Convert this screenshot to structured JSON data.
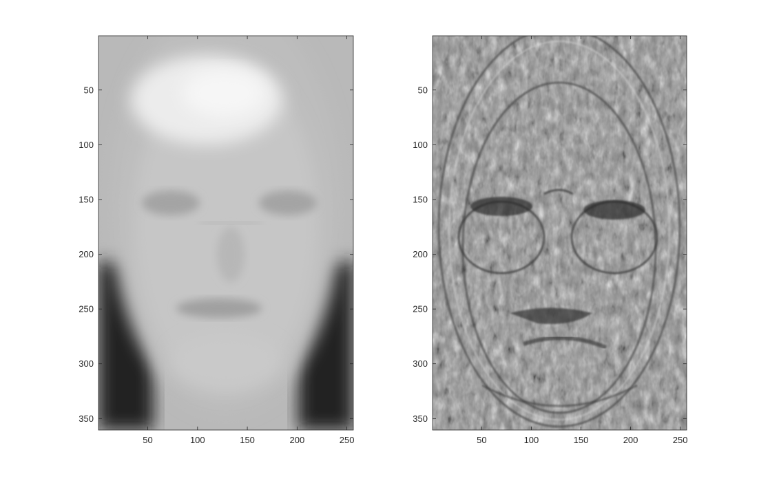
{
  "chart_data": [
    {
      "type": "heatmap",
      "colormap": "gray",
      "image_size": [
        256,
        360
      ],
      "xlim": [
        0.5,
        256.5
      ],
      "ylim": [
        0.5,
        360.5
      ],
      "y_direction": "reversed",
      "xticks": [
        50,
        100,
        150,
        200,
        250
      ],
      "yticks": [
        50,
        100,
        150,
        200,
        250,
        300,
        350
      ],
      "xtick_labels": [
        "50",
        "100",
        "150",
        "200",
        "250"
      ],
      "ytick_labels": [
        "50",
        "100",
        "150",
        "200",
        "250",
        "300",
        "350"
      ],
      "grid": false
    },
    {
      "type": "heatmap",
      "colormap": "gray",
      "image_size": [
        256,
        360
      ],
      "xlim": [
        0.5,
        256.5
      ],
      "ylim": [
        0.5,
        360.5
      ],
      "y_direction": "reversed",
      "xticks": [
        50,
        100,
        150,
        200,
        250
      ],
      "yticks": [
        50,
        100,
        150,
        200,
        250,
        300,
        350
      ],
      "xtick_labels": [
        "50",
        "100",
        "150",
        "200",
        "250"
      ],
      "ytick_labels": [
        "50",
        "100",
        "150",
        "200",
        "250",
        "300",
        "350"
      ],
      "grid": false
    }
  ]
}
